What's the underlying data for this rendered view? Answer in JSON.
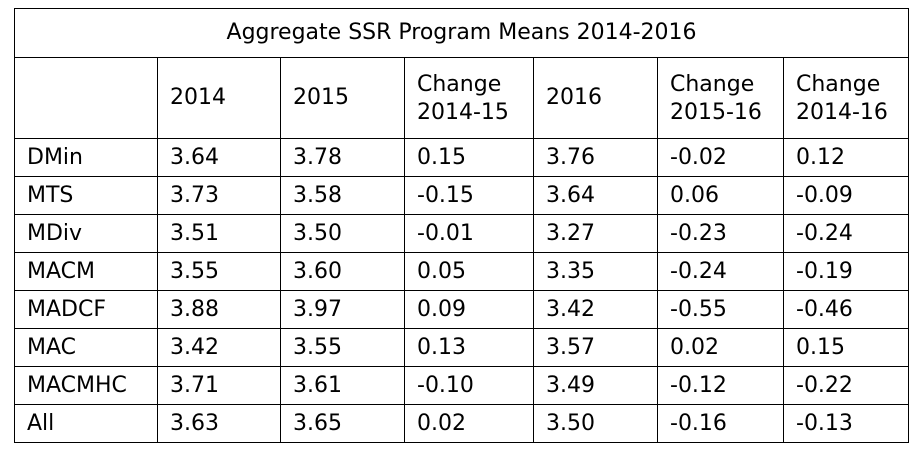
{
  "table": {
    "title": "Aggregate SSR Program Means 2014-2016",
    "headers": [
      [
        "",
        ""
      ],
      [
        "2014",
        ""
      ],
      [
        "2015",
        ""
      ],
      [
        "Change",
        "2014-15"
      ],
      [
        "2016",
        ""
      ],
      [
        "Change",
        "2015-16"
      ],
      [
        "Change",
        "2014-16"
      ]
    ],
    "rows": [
      [
        "DMin",
        "3.64",
        "3.78",
        "0.15",
        "3.76",
        "-0.02",
        "0.12"
      ],
      [
        "MTS",
        "3.73",
        "3.58",
        "-0.15",
        "3.64",
        "0.06",
        "-0.09"
      ],
      [
        "MDiv",
        "3.51",
        "3.50",
        "-0.01",
        "3.27",
        "-0.23",
        "-0.24"
      ],
      [
        "MACM",
        "3.55",
        "3.60",
        "0.05",
        "3.35",
        "-0.24",
        "-0.19"
      ],
      [
        "MADCF",
        "3.88",
        "3.97",
        "0.09",
        "3.42",
        "-0.55",
        "-0.46"
      ],
      [
        "MAC",
        "3.42",
        "3.55",
        "0.13",
        "3.57",
        "0.02",
        "0.15"
      ],
      [
        "MACMHC",
        "3.71",
        "3.61",
        "-0.10",
        "3.49",
        "-0.12",
        "-0.22"
      ],
      [
        "All",
        "3.63",
        "3.65",
        "0.02",
        "3.50",
        "-0.16",
        "-0.13"
      ]
    ]
  }
}
